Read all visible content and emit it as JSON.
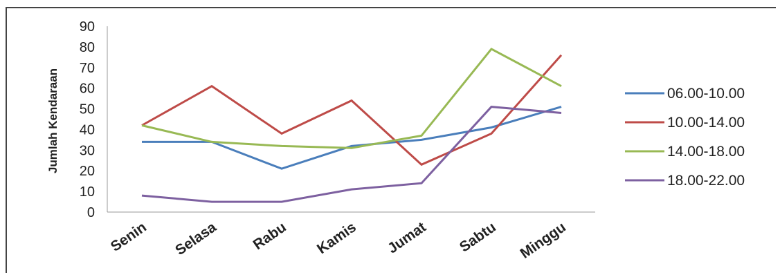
{
  "chart_data": {
    "type": "line",
    "ylabel": "Jumlah Kendaraan",
    "xlabel": "",
    "categories": [
      "Senin",
      "Selasa",
      "Rabu",
      "Kamis",
      "Jumat",
      "Sabtu",
      "Minggu"
    ],
    "ylim": [
      0,
      90
    ],
    "yticks": [
      0,
      10,
      20,
      30,
      40,
      50,
      60,
      70,
      80,
      90
    ],
    "grid": false,
    "legend_position": "right",
    "series": [
      {
        "name": "06.00-10.00",
        "color": "#4a7ebb",
        "values": [
          34,
          34,
          21,
          32,
          35,
          41,
          51
        ]
      },
      {
        "name": "10.00-14.00",
        "color": "#be4b48",
        "values": [
          42,
          61,
          38,
          54,
          23,
          38,
          76
        ]
      },
      {
        "name": "14.00-18.00",
        "color": "#98b954",
        "values": [
          42,
          34,
          32,
          31,
          37,
          79,
          61
        ]
      },
      {
        "name": "18.00-22.00",
        "color": "#7d60a0",
        "values": [
          8,
          5,
          5,
          11,
          14,
          51,
          48
        ]
      }
    ]
  }
}
